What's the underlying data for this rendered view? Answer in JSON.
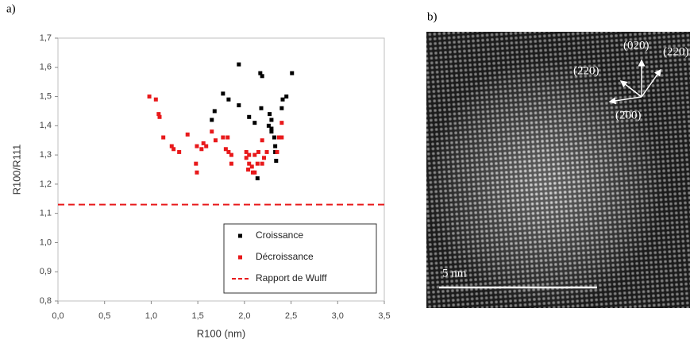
{
  "panel_labels": [
    "a)",
    "b)"
  ],
  "chart_data": {
    "type": "scatter",
    "x_label": "R100 (nm)",
    "y_label": "R100/R111",
    "xlim": [
      0,
      3.5
    ],
    "ylim": [
      0.8,
      1.7
    ],
    "xticks": [
      {
        "value": 0,
        "label": "0,0"
      },
      {
        "value": 0.5,
        "label": "0,5"
      },
      {
        "value": 1,
        "label": "1,0"
      },
      {
        "value": 1.5,
        "label": "1,5"
      },
      {
        "value": 2,
        "label": "2,0"
      },
      {
        "value": 2.5,
        "label": "2,5"
      },
      {
        "value": 3,
        "label": "3,0"
      },
      {
        "value": 3.5,
        "label": "3,5"
      }
    ],
    "yticks": [
      {
        "value": 0.8,
        "label": "0,8"
      },
      {
        "value": 0.9,
        "label": "0,9"
      },
      {
        "value": 1,
        "label": "1,0"
      },
      {
        "value": 1.1,
        "label": "1,1"
      },
      {
        "value": 1.2,
        "label": "1,2"
      },
      {
        "value": 1.3,
        "label": "1,3"
      },
      {
        "value": 1.4,
        "label": "1,4"
      },
      {
        "value": 1.5,
        "label": "1,5"
      },
      {
        "value": 1.6,
        "label": "1,6"
      },
      {
        "value": 1.7,
        "label": "1,7"
      }
    ],
    "legend": "lower right",
    "series": [
      {
        "name": "Croissance",
        "color": "#000000",
        "kind": "points",
        "x": [
          1.94,
          2.19,
          2.17,
          2.51,
          1.77,
          1.83,
          1.94,
          2.18,
          2.45,
          2.41,
          1.68,
          1.65,
          2.4,
          2.05,
          2.11,
          2.27,
          2.29,
          2.26,
          2.29,
          2.29,
          2.32,
          2.33,
          2.33,
          2.34,
          2.14
        ],
        "values": [
          1.61,
          1.57,
          1.58,
          1.58,
          1.51,
          1.49,
          1.47,
          1.46,
          1.5,
          1.49,
          1.45,
          1.42,
          1.46,
          1.43,
          1.41,
          1.44,
          1.42,
          1.4,
          1.39,
          1.38,
          1.36,
          1.33,
          1.31,
          1.28,
          1.22
        ]
      },
      {
        "name": "Décroissance",
        "color": "#e8191b",
        "kind": "points",
        "x": [
          0.98,
          1.05,
          1.08,
          1.09,
          1.13,
          1.22,
          1.24,
          1.3,
          1.39,
          1.48,
          1.49,
          1.49,
          1.56,
          1.54,
          1.59,
          1.65,
          1.69,
          1.77,
          1.82,
          1.8,
          1.83,
          1.86,
          1.86,
          2.02,
          2.02,
          2.05,
          2.11,
          2.04,
          2.08,
          2.09,
          2.11,
          2.19,
          2.21,
          2.24,
          2.19,
          2.35,
          2.37,
          2.4,
          2.4,
          2.05,
          2.14,
          2.15
        ],
        "values": [
          1.5,
          1.49,
          1.44,
          1.43,
          1.36,
          1.33,
          1.32,
          1.31,
          1.37,
          1.27,
          1.24,
          1.33,
          1.34,
          1.32,
          1.33,
          1.38,
          1.35,
          1.36,
          1.36,
          1.32,
          1.31,
          1.3,
          1.27,
          1.31,
          1.29,
          1.3,
          1.3,
          1.25,
          1.26,
          1.24,
          1.24,
          1.27,
          1.29,
          1.31,
          1.35,
          1.31,
          1.36,
          1.41,
          1.36,
          1.27,
          1.27,
          1.31
        ]
      },
      {
        "name": "Rapport de Wulff",
        "color": "#e8191b",
        "kind": "dashed-line",
        "x": [
          0,
          3.5
        ],
        "values": [
          1.13,
          1.13
        ]
      }
    ]
  },
  "micrograph": {
    "labels": [
      "(020)",
      "(220)",
      "(2̄20)",
      "(2̄00)"
    ],
    "scale_bar": "5 nm"
  }
}
